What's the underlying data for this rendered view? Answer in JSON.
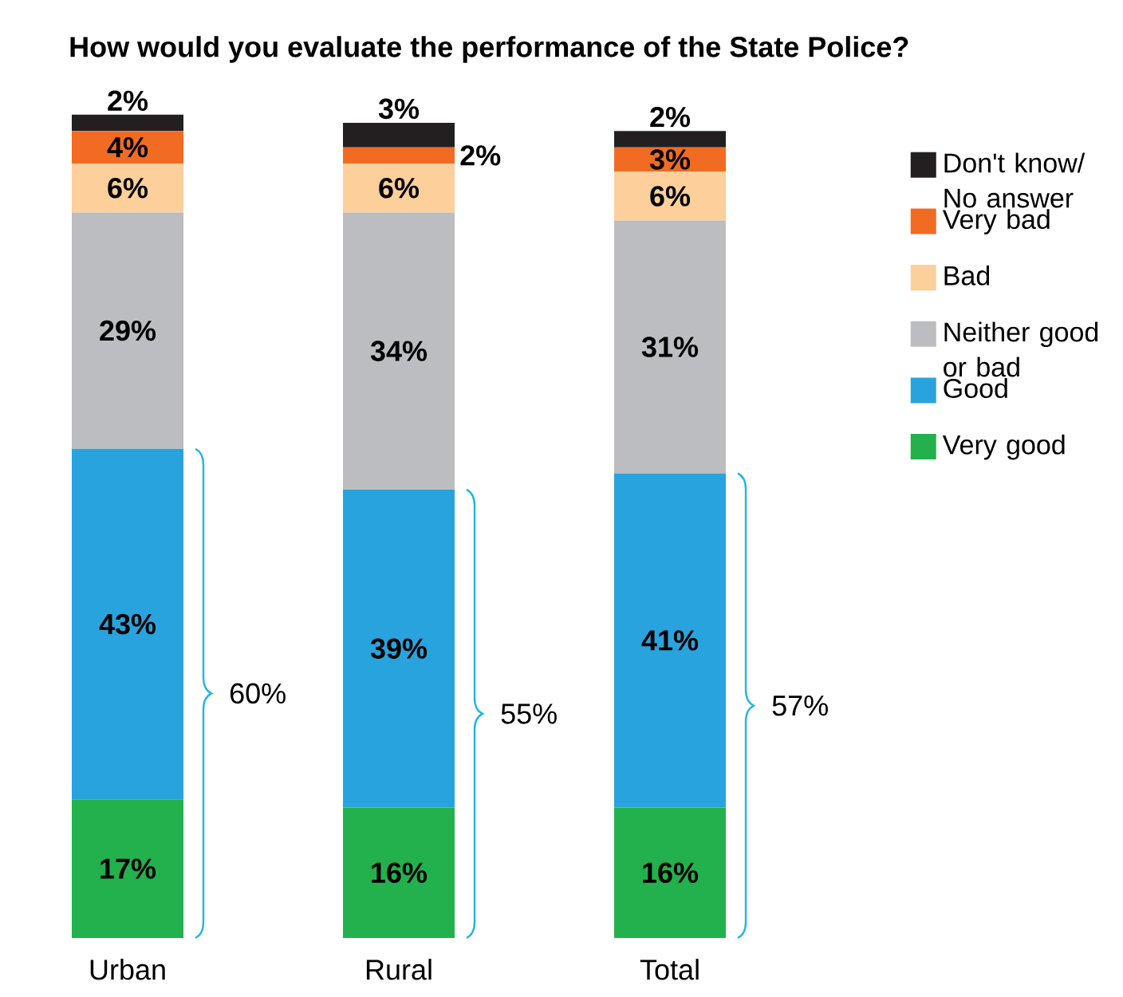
{
  "chart_data": {
    "type": "bar",
    "stacked": true,
    "title": "How would you evaluate the performance of the State Police?",
    "categories": [
      "Urban",
      "Rural",
      "Total"
    ],
    "series": [
      {
        "name": "Very good",
        "color": "#22b14c",
        "values": [
          17,
          16,
          16
        ],
        "value_labels": [
          "17%",
          "16%",
          "16%"
        ]
      },
      {
        "name": "Good",
        "color": "#29a3dd",
        "values": [
          43,
          39,
          41
        ],
        "value_labels": [
          "43%",
          "39%",
          "41%"
        ]
      },
      {
        "name": "Neither good or bad",
        "color": "#bcbdc0",
        "values": [
          29,
          34,
          31
        ],
        "value_labels": [
          "29%",
          "34%",
          "31%"
        ]
      },
      {
        "name": "Bad",
        "color": "#fdcf9b",
        "values": [
          6,
          6,
          6
        ],
        "value_labels": [
          "6%",
          "6%",
          "6%"
        ]
      },
      {
        "name": "Very bad",
        "color": "#f26b22",
        "values": [
          4,
          2,
          3
        ],
        "value_labels": [
          "4%",
          "2%",
          "3%"
        ]
      },
      {
        "name": "Don't know/ No answer",
        "color": "#231f20",
        "values": [
          2,
          3,
          2
        ],
        "value_labels": [
          "2%",
          "3%",
          "2%"
        ]
      }
    ],
    "annotations": [
      "60%",
      "55%",
      "57%"
    ],
    "legend": "right"
  }
}
